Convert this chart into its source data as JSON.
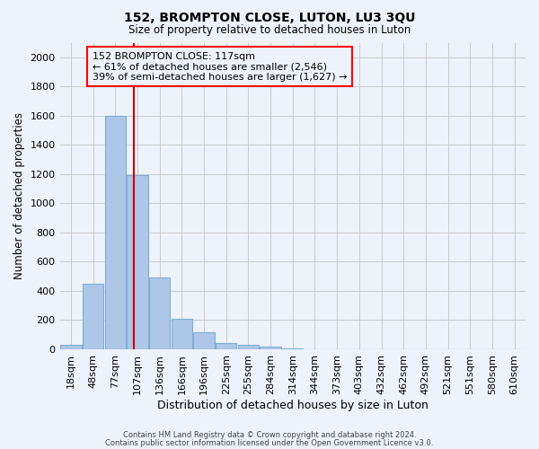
{
  "title": "152, BROMPTON CLOSE, LUTON, LU3 3QU",
  "subtitle": "Size of property relative to detached houses in Luton",
  "xlabel": "Distribution of detached houses by size in Luton",
  "ylabel": "Number of detached properties",
  "bar_values": [
    30,
    450,
    1600,
    1190,
    490,
    210,
    115,
    40,
    30,
    18,
    5,
    0,
    0,
    0,
    0,
    0,
    0,
    0,
    0,
    0,
    0
  ],
  "bin_labels": [
    "18sqm",
    "48sqm",
    "77sqm",
    "107sqm",
    "136sqm",
    "166sqm",
    "196sqm",
    "225sqm",
    "255sqm",
    "284sqm",
    "314sqm",
    "344sqm",
    "373sqm",
    "403sqm",
    "432sqm",
    "462sqm",
    "492sqm",
    "521sqm",
    "551sqm",
    "580sqm",
    "610sqm"
  ],
  "bar_color": "#aec6e8",
  "bar_edge_color": "#7bafd4",
  "bar_edge_width": 0.8,
  "red_line_color": "#cc0000",
  "annotation_line1": "152 BROMPTON CLOSE: 117sqm",
  "annotation_line2": "← 61% of detached houses are smaller (2,546)",
  "annotation_line3": "39% of semi-detached houses are larger (1,627) →",
  "ylim": [
    0,
    2100
  ],
  "yticks": [
    0,
    200,
    400,
    600,
    800,
    1000,
    1200,
    1400,
    1600,
    1800,
    2000
  ],
  "footer1": "Contains HM Land Registry data © Crown copyright and database right 2024.",
  "footer2": "Contains public sector information licensed under the Open Government Licence v3.0.",
  "bg_color": "#eef2fb"
}
